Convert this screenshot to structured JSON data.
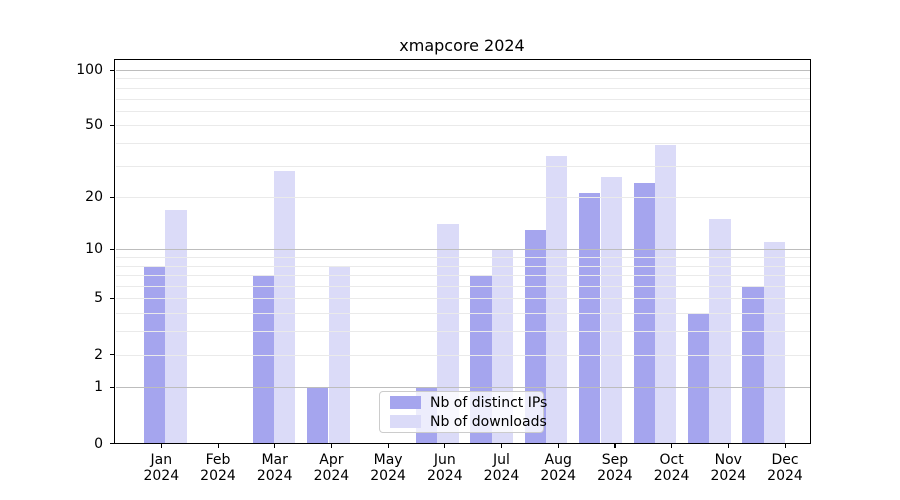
{
  "chart_data": {
    "type": "bar",
    "title": "xmapcore 2024",
    "year": "2024",
    "categories": [
      "Jan",
      "Feb",
      "Mar",
      "Apr",
      "May",
      "Jun",
      "Jul",
      "Aug",
      "Sep",
      "Oct",
      "Nov",
      "Dec"
    ],
    "series": [
      {
        "name": "Nb of distinct IPs",
        "key": "distinct-ips",
        "color": "#a5a5ee",
        "values": [
          8,
          0,
          7,
          1,
          0,
          1,
          7,
          13,
          21,
          24,
          4,
          6
        ]
      },
      {
        "name": "Nb of downloads",
        "key": "downloads",
        "color": "#dbdbf8",
        "values": [
          17,
          0,
          28,
          8,
          0,
          14,
          10,
          34,
          26,
          39,
          15,
          11
        ]
      }
    ],
    "y_scale": "log1p",
    "ylim": [
      0,
      116
    ],
    "y_tick_values": [
      100,
      50,
      20,
      10,
      5,
      2,
      1,
      0
    ],
    "y_major_gridlines": [
      1,
      10,
      100
    ],
    "y_minor_gridlines": [
      2,
      3,
      4,
      5,
      6,
      7,
      8,
      9,
      20,
      30,
      40,
      50,
      60,
      70,
      80,
      90
    ],
    "grid": true,
    "legend_position": "lower-center",
    "colors": {
      "grid_major": "#bdbdbd",
      "grid_minor": "#eaeaea",
      "spine": "#000000",
      "text": "#000000",
      "legend_border": "#cccccc"
    }
  }
}
